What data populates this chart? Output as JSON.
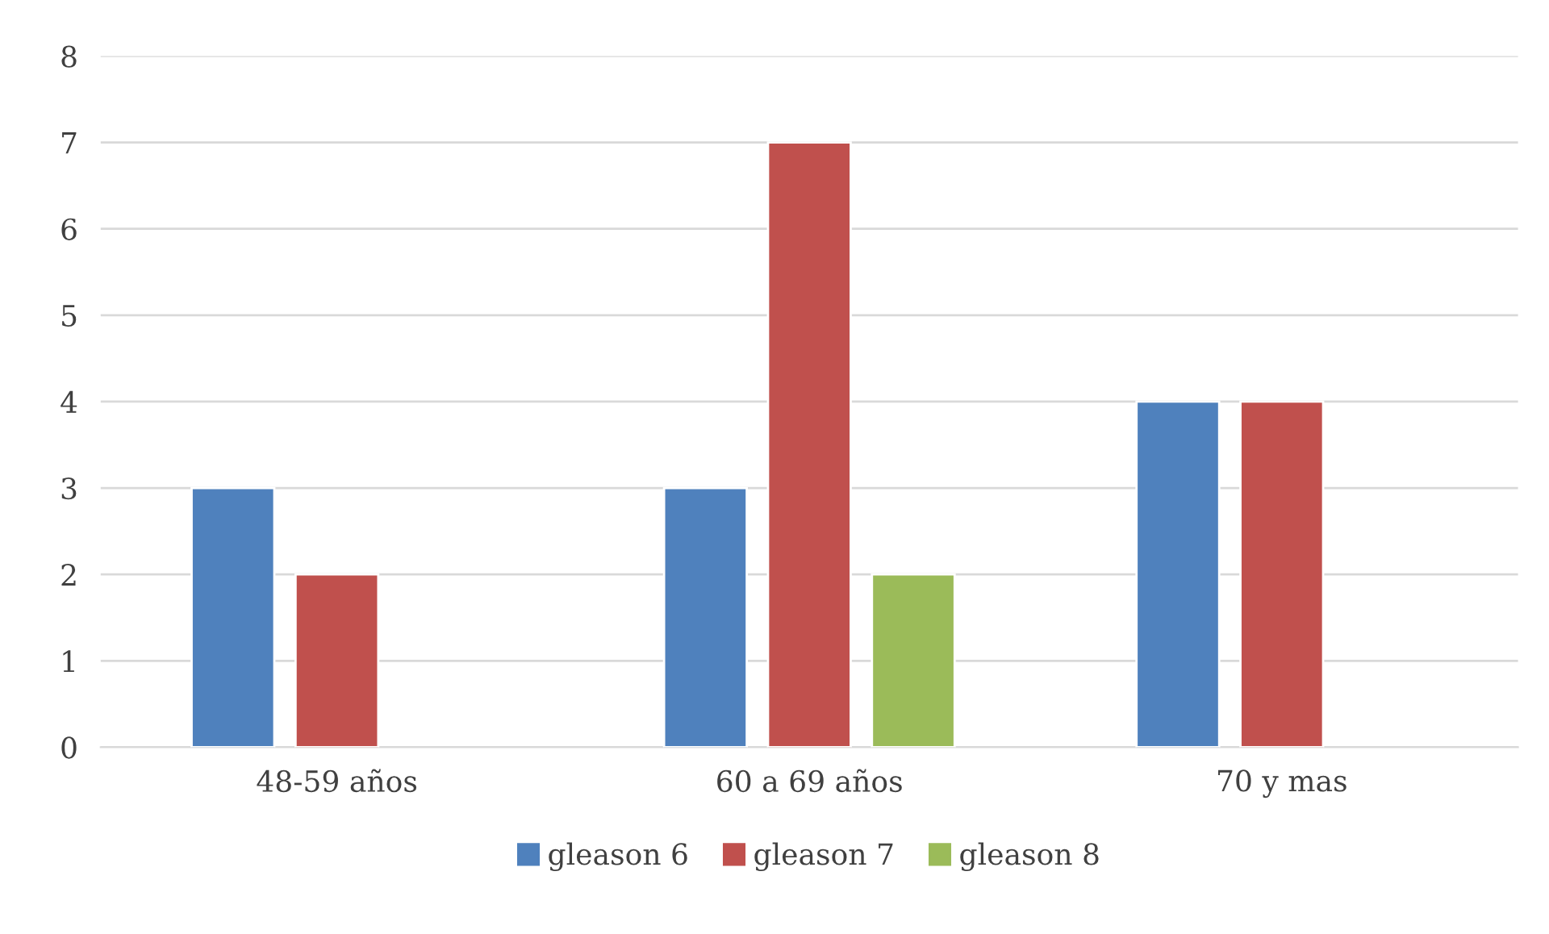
{
  "chart_data": {
    "type": "bar",
    "categories": [
      "48-59 años",
      "60 a 69 años",
      "70 y mas"
    ],
    "series": [
      {
        "name": "gleason 6",
        "color": "#4f81bd",
        "values": [
          3,
          3,
          4
        ]
      },
      {
        "name": "gleason 7",
        "color": "#c0504d",
        "values": [
          2,
          7,
          4
        ]
      },
      {
        "name": "gleason 8",
        "color": "#9bbb59",
        "values": [
          null,
          2,
          null
        ]
      }
    ],
    "ylim": [
      0,
      8
    ],
    "yticks": [
      0,
      1,
      2,
      3,
      4,
      5,
      6,
      7,
      8
    ],
    "grid": "y",
    "legend": "bottom"
  }
}
